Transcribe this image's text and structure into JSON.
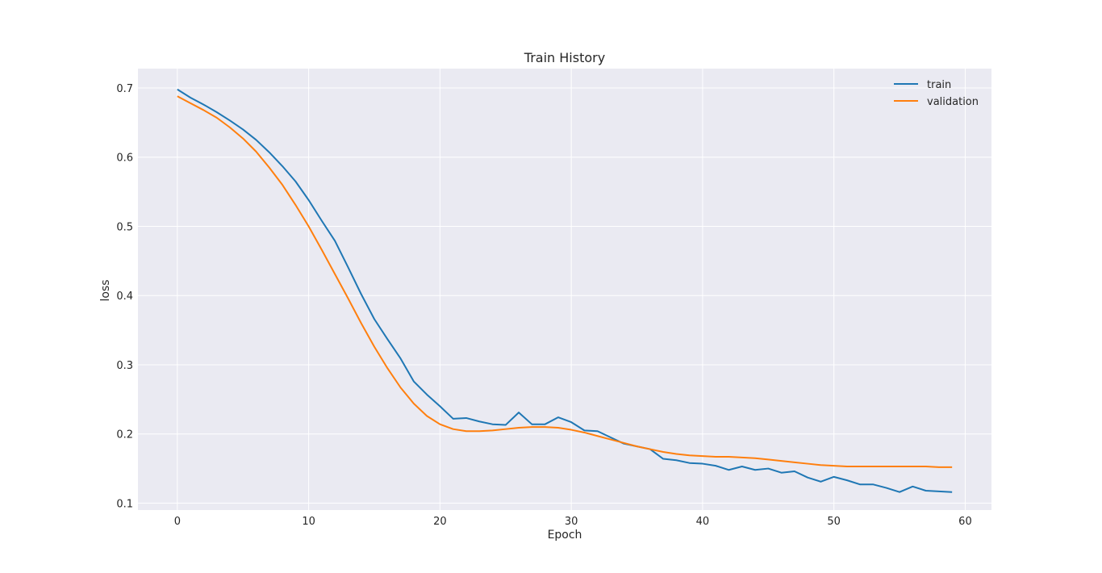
{
  "chart_data": {
    "type": "line",
    "title": "Train History",
    "xlabel": "Epoch",
    "ylabel": "loss",
    "xlim": [
      -3,
      62
    ],
    "ylim": [
      0.09,
      0.728
    ],
    "xticks": [
      0,
      10,
      20,
      30,
      40,
      50,
      60
    ],
    "yticks": [
      0.1,
      0.2,
      0.3,
      0.4,
      0.5,
      0.6,
      0.7
    ],
    "grid": true,
    "legend_position": "top-right",
    "background_color": "#EAEAF2",
    "x": [
      0,
      1,
      2,
      3,
      4,
      5,
      6,
      7,
      8,
      9,
      10,
      11,
      12,
      13,
      14,
      15,
      16,
      17,
      18,
      19,
      20,
      21,
      22,
      23,
      24,
      25,
      26,
      27,
      28,
      29,
      30,
      31,
      32,
      33,
      34,
      35,
      36,
      37,
      38,
      39,
      40,
      41,
      42,
      43,
      44,
      45,
      46,
      47,
      48,
      49,
      50,
      51,
      52,
      53,
      54,
      55,
      56,
      57,
      58,
      59
    ],
    "series": [
      {
        "name": "train",
        "color": "#1f77b4",
        "values": [
          0.698,
          0.686,
          0.676,
          0.665,
          0.653,
          0.64,
          0.625,
          0.607,
          0.587,
          0.565,
          0.538,
          0.508,
          0.479,
          0.441,
          0.402,
          0.366,
          0.337,
          0.309,
          0.276,
          0.257,
          0.24,
          0.222,
          0.223,
          0.218,
          0.214,
          0.213,
          0.231,
          0.214,
          0.214,
          0.224,
          0.217,
          0.205,
          0.204,
          0.195,
          0.186,
          0.182,
          0.178,
          0.164,
          0.162,
          0.158,
          0.157,
          0.154,
          0.148,
          0.153,
          0.148,
          0.15,
          0.144,
          0.146,
          0.137,
          0.131,
          0.138,
          0.133,
          0.127,
          0.127,
          0.122,
          0.116,
          0.124,
          0.118,
          0.117,
          0.116
        ]
      },
      {
        "name": "validation",
        "color": "#ff7f0e",
        "values": [
          0.688,
          0.678,
          0.668,
          0.657,
          0.643,
          0.627,
          0.608,
          0.585,
          0.56,
          0.531,
          0.5,
          0.466,
          0.431,
          0.396,
          0.36,
          0.326,
          0.295,
          0.267,
          0.244,
          0.226,
          0.214,
          0.207,
          0.204,
          0.204,
          0.205,
          0.207,
          0.209,
          0.21,
          0.21,
          0.209,
          0.206,
          0.202,
          0.197,
          0.192,
          0.187,
          0.182,
          0.178,
          0.174,
          0.171,
          0.169,
          0.168,
          0.167,
          0.167,
          0.166,
          0.165,
          0.163,
          0.161,
          0.159,
          0.157,
          0.155,
          0.154,
          0.153,
          0.153,
          0.153,
          0.153,
          0.153,
          0.153,
          0.153,
          0.152,
          0.152
        ]
      }
    ]
  }
}
